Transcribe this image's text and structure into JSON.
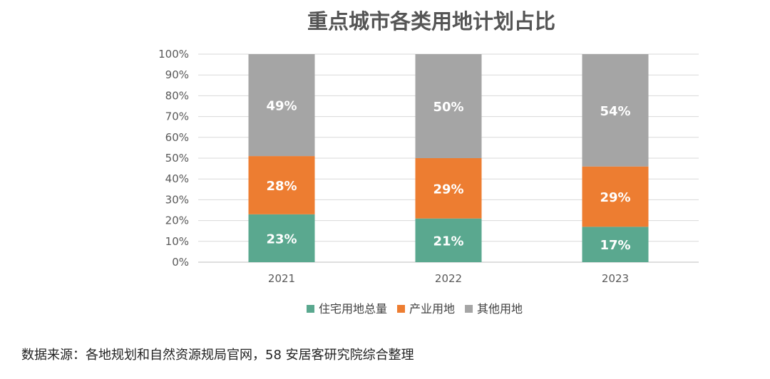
{
  "chart_data": {
    "type": "bar",
    "stacked": true,
    "title": "重点城市各类用地计划占比",
    "categories": [
      "2021",
      "2022",
      "2023"
    ],
    "series": [
      {
        "name": "住宅用地总量",
        "values": [
          23,
          21,
          17
        ],
        "labels": [
          "23%",
          "21%",
          "17%"
        ],
        "color": "#5aa88f"
      },
      {
        "name": "产业用地",
        "values": [
          28,
          29,
          29
        ],
        "labels": [
          "28%",
          "29%",
          "29%"
        ],
        "color": "#ed7d31"
      },
      {
        "name": "其他用地",
        "values": [
          49,
          50,
          54
        ],
        "labels": [
          "49%",
          "50%",
          "54%"
        ],
        "color": "#a5a5a5"
      }
    ],
    "ylim": [
      0,
      100
    ],
    "yticks": [
      "0%",
      "10%",
      "20%",
      "30%",
      "40%",
      "50%",
      "60%",
      "70%",
      "80%",
      "90%",
      "100%"
    ],
    "grid": true,
    "legend_position": "bottom"
  },
  "source": "数据来源：各地规划和自然资源规局官网，58 安居客研究院综合整理"
}
